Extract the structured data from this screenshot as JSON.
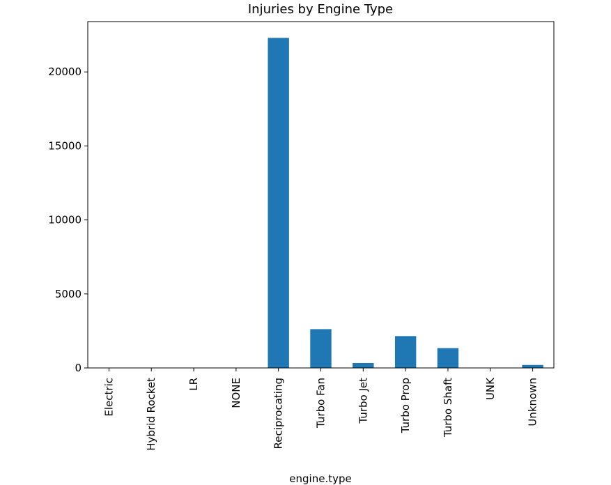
{
  "chart_data": {
    "type": "bar",
    "title": "Injuries by Engine Type",
    "xlabel": "engine.type",
    "ylabel": "",
    "categories": [
      "Electric",
      "Hybrid Rocket",
      "LR",
      "NONE",
      "Reciprocating",
      "Turbo Fan",
      "Turbo Jet",
      "Turbo Prop",
      "Turbo Shaft",
      "UNK",
      "Unknown"
    ],
    "values": [
      0,
      0,
      0,
      0,
      22300,
      2620,
      330,
      2150,
      1340,
      0,
      200
    ],
    "ylim": [
      0,
      23400
    ],
    "yticks": [
      0,
      5000,
      10000,
      15000,
      20000
    ],
    "ytick_labels": [
      "0",
      "5000",
      "10000",
      "15000",
      "20000"
    ],
    "grid": false,
    "legend": "none",
    "bar_color": "#1f77b4"
  }
}
